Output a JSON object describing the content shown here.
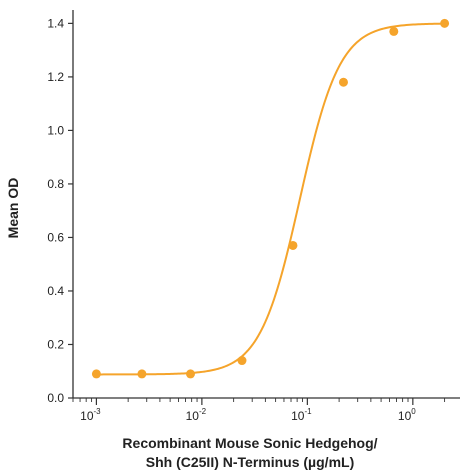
{
  "chart_data": {
    "type": "scatter",
    "x_scale": "log",
    "xlim": [
      0.0006,
      2.8
    ],
    "ylim": [
      0.0,
      1.45
    ],
    "ylabel": "Mean OD",
    "xlabel_lines": [
      "Recombinant Mouse Sonic Hedgehog/",
      "Shh (C25II) N-Terminus (µg/mL)"
    ],
    "y_ticks": [
      0.0,
      0.2,
      0.4,
      0.6,
      0.8,
      1.0,
      1.2,
      1.4
    ],
    "y_tick_labels": [
      "0.0",
      "0.2",
      "0.4",
      "0.6",
      "0.8",
      "1.0",
      "1.2",
      "1.4"
    ],
    "x_ticks": [
      0.001,
      0.01,
      0.1,
      1
    ],
    "x_tick_labels": [
      {
        "base": "10",
        "exp": "-3"
      },
      {
        "base": "10",
        "exp": "-2"
      },
      {
        "base": "10",
        "exp": "-1"
      },
      {
        "base": "10",
        "exp": "0"
      }
    ],
    "grid": false,
    "color": "#f5a42b",
    "series": [
      {
        "points": [
          {
            "x": 0.001,
            "y": 0.09
          },
          {
            "x": 0.0027,
            "y": 0.09
          },
          {
            "x": 0.0078,
            "y": 0.09
          },
          {
            "x": 0.024,
            "y": 0.14
          },
          {
            "x": 0.073,
            "y": 0.57
          },
          {
            "x": 0.22,
            "y": 1.18
          },
          {
            "x": 0.66,
            "y": 1.37
          },
          {
            "x": 2.0,
            "y": 1.4
          }
        ],
        "fit_curve": {
          "bottom": 0.088,
          "top": 1.4,
          "ec50": 0.085,
          "hill": 2.3
        }
      }
    ]
  }
}
